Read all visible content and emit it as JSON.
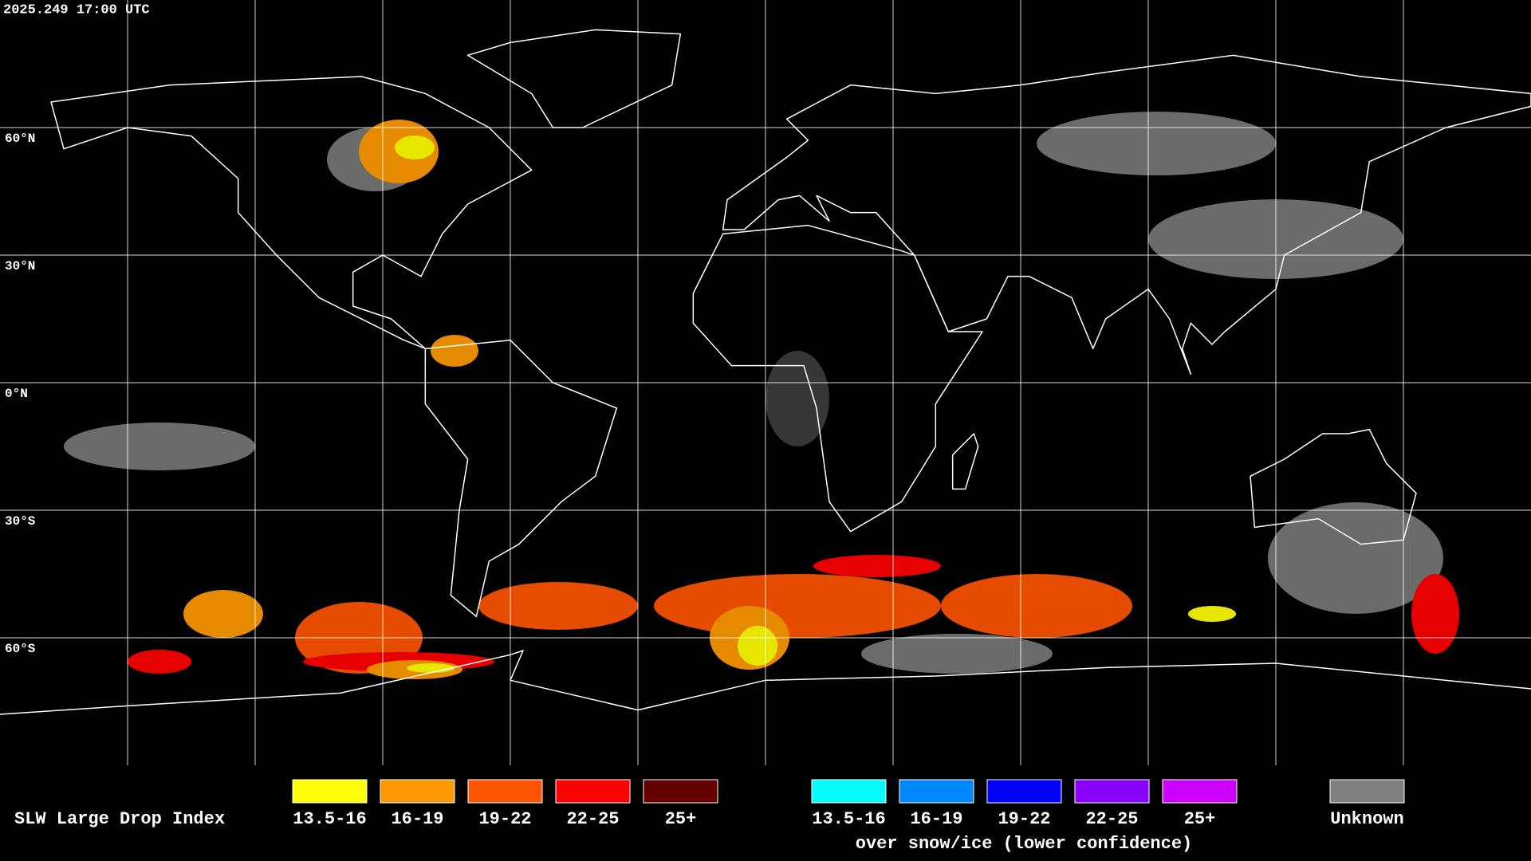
{
  "header": {
    "timestamp": "2025.249 17:00 UTC"
  },
  "lat_labels": [
    "60°N",
    "30°N",
    "0°N",
    "30°S",
    "60°S"
  ],
  "legend": {
    "title": "SLW Large Drop Index",
    "liquid": [
      {
        "label": "13.5-16",
        "color": "#ffff00"
      },
      {
        "label": "16-19",
        "color": "#ff9900"
      },
      {
        "label": "19-22",
        "color": "#ff5500"
      },
      {
        "label": "22-25",
        "color": "#ff0000"
      },
      {
        "label": "25+",
        "color": "#660000"
      }
    ],
    "ice": [
      {
        "label": "13.5-16",
        "color": "#00ffff"
      },
      {
        "label": "16-19",
        "color": "#0088ff"
      },
      {
        "label": "19-22",
        "color": "#0000ff"
      },
      {
        "label": "22-25",
        "color": "#8800ff"
      },
      {
        "label": "25+",
        "color": "#cc00ff"
      }
    ],
    "ice_caption": "over snow/ice (lower confidence)",
    "unknown": {
      "label": "Unknown",
      "color": "#808080"
    }
  }
}
